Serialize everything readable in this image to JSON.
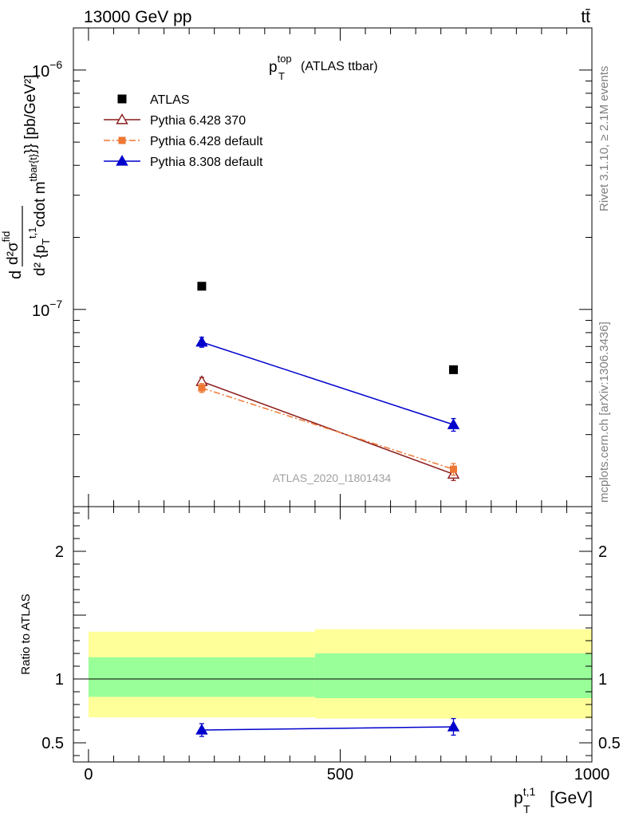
{
  "header": {
    "left": "13000 GeV pp",
    "right": "tt̄"
  },
  "side_labels": {
    "rivet": "Rivet 3.1.10, ≥ 2.1M events",
    "mcplots": "mcplots.cern.ch [arXiv:1306.3436]"
  },
  "chart_data": [
    {
      "type": "line",
      "title": "p_T^top (ATLAS ttbar)",
      "title_main": "p",
      "title_sup": "top",
      "title_sub": "T",
      "title_rest": "(ATLAS ttbar)",
      "ylabel": "d²σ^{fid} / d² {p_T^{t,1} cdot m^{tbar{t}}} [pb/GeV²]",
      "ylabel_num": "d²σ",
      "ylabel_num_sup": "fid",
      "ylabel_den": "d² {p",
      "ylabel_den_sub": "T",
      "ylabel_den_sup": "t,1",
      "ylabel_den_rest": "cdot m",
      "ylabel_den_rest_sup": "tbar{t}",
      "ylabel_unit": "}} [pb/GeV²]",
      "ylabel_d": "d",
      "yscale": "log",
      "ylim": [
        1.5e-08,
        1.5e-06
      ],
      "xlim": [
        -30,
        1000
      ],
      "yticks": [
        {
          "value": 1e-06,
          "base": "10",
          "exp": "−6"
        },
        {
          "value": 1e-07,
          "base": "10",
          "exp": "−7"
        }
      ],
      "watermark": "ATLAS_2020_I1801434",
      "legend_position": "top-left",
      "series": [
        {
          "name": "ATLAS",
          "marker": "square",
          "color": "#000000",
          "x": [
            225,
            725
          ],
          "y": [
            1.25e-07,
            5.6e-08
          ]
        },
        {
          "name": "Pythia 6.428 370",
          "marker": "triangle-open",
          "color": "#8b1a1a",
          "dash": "",
          "x": [
            225,
            725
          ],
          "y": [
            5e-08,
            2.05e-08
          ],
          "yerr": [
            2e-09,
            1.2e-09
          ]
        },
        {
          "name": "Pythia 6.428 default",
          "marker": "square-small",
          "color": "#ee7733",
          "dash": "8,3,2,3",
          "x": [
            225,
            725
          ],
          "y": [
            4.7e-08,
            2.15e-08
          ],
          "yerr": [
            2e-09,
            1.2e-09
          ]
        },
        {
          "name": "Pythia 8.308 default",
          "marker": "triangle",
          "color": "#0000cc",
          "dash": "",
          "x": [
            225,
            725
          ],
          "y": [
            7.3e-08,
            3.3e-08
          ],
          "yerr": [
            3.5e-09,
            2e-09
          ]
        }
      ]
    },
    {
      "type": "line",
      "ylabel": "Ratio to ATLAS",
      "xlabel_main": "p",
      "xlabel_sub": "T",
      "xlabel_sup": "t,1",
      "xlabel_unit": "[GeV]",
      "ylim": [
        0.35,
        2.35
      ],
      "xlim": [
        -30,
        1000
      ],
      "yticks": [
        0.5,
        1,
        2
      ],
      "ytick_labels": [
        "0.5",
        "1",
        "2"
      ],
      "xticks": [
        0,
        500,
        1000
      ],
      "xtick_labels": [
        "0",
        "500",
        "1000"
      ],
      "bands": [
        {
          "x0": 0,
          "x1": 450,
          "yellow": [
            0.7,
            1.37
          ],
          "green": [
            0.86,
            1.17
          ]
        },
        {
          "x0": 450,
          "x1": 1000,
          "yellow": [
            0.69,
            1.39
          ],
          "green": [
            0.85,
            1.2
          ]
        }
      ],
      "reference": 1,
      "series": [
        {
          "name": "Pythia 8.308 default",
          "marker": "triangle",
          "color": "#0000cc",
          "x": [
            225,
            725
          ],
          "y": [
            0.6,
            0.625
          ],
          "yerr": [
            0.05,
            0.065
          ]
        }
      ]
    }
  ]
}
